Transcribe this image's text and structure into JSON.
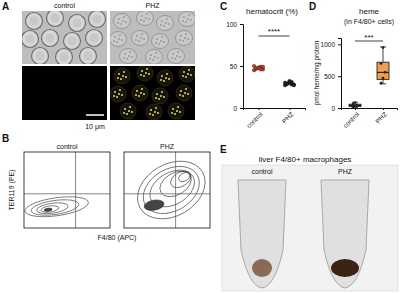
{
  "panels": {
    "A": {
      "label": "A",
      "columns": [
        "control",
        "PHZ"
      ],
      "scale_bar": "10 μm"
    },
    "B": {
      "label": "B",
      "columns": [
        "control",
        "PHZ"
      ],
      "y_label": "TER119 (PE)",
      "x_label": "F4/80 (APC)"
    },
    "E": {
      "label": "E",
      "title": "liver F4/80+ macrophages",
      "columns": [
        "control",
        "PHZ"
      ]
    }
  },
  "chart_data": [
    {
      "label": "C",
      "type": "scatter",
      "title": "hematocrit (%)",
      "categories": [
        "control",
        "PHZ"
      ],
      "values": [
        [
          45,
          47,
          48,
          49,
          46,
          50,
          47,
          48,
          46,
          49
        ],
        [
          27,
          29,
          30,
          31,
          28,
          30,
          29,
          32,
          28,
          27
        ]
      ],
      "colors": [
        "#c0392b",
        "#222222"
      ],
      "ylim": [
        0,
        100
      ],
      "yticks": [
        0,
        50,
        100
      ],
      "significance": "****"
    },
    {
      "label": "D",
      "type": "box",
      "title": "heme",
      "subtitle": "(in F4/80+ cells)",
      "y_label": "pmol heme/mg protein",
      "categories": [
        "control",
        "PHZ"
      ],
      "values": [
        [
          15,
          30,
          45,
          60,
          85
        ],
        [
          390,
          470,
          560,
          700,
          950
        ]
      ],
      "box": [
        {
          "min": 10,
          "q1": 25,
          "median": 40,
          "q3": 60,
          "max": 90
        },
        {
          "min": 380,
          "q1": 450,
          "median": 560,
          "q3": 720,
          "max": 960
        }
      ],
      "color": "#f39c4a",
      "ylim": [
        0,
        1100
      ],
      "yticks": [
        0,
        500,
        1000
      ],
      "significance": "***"
    }
  ]
}
